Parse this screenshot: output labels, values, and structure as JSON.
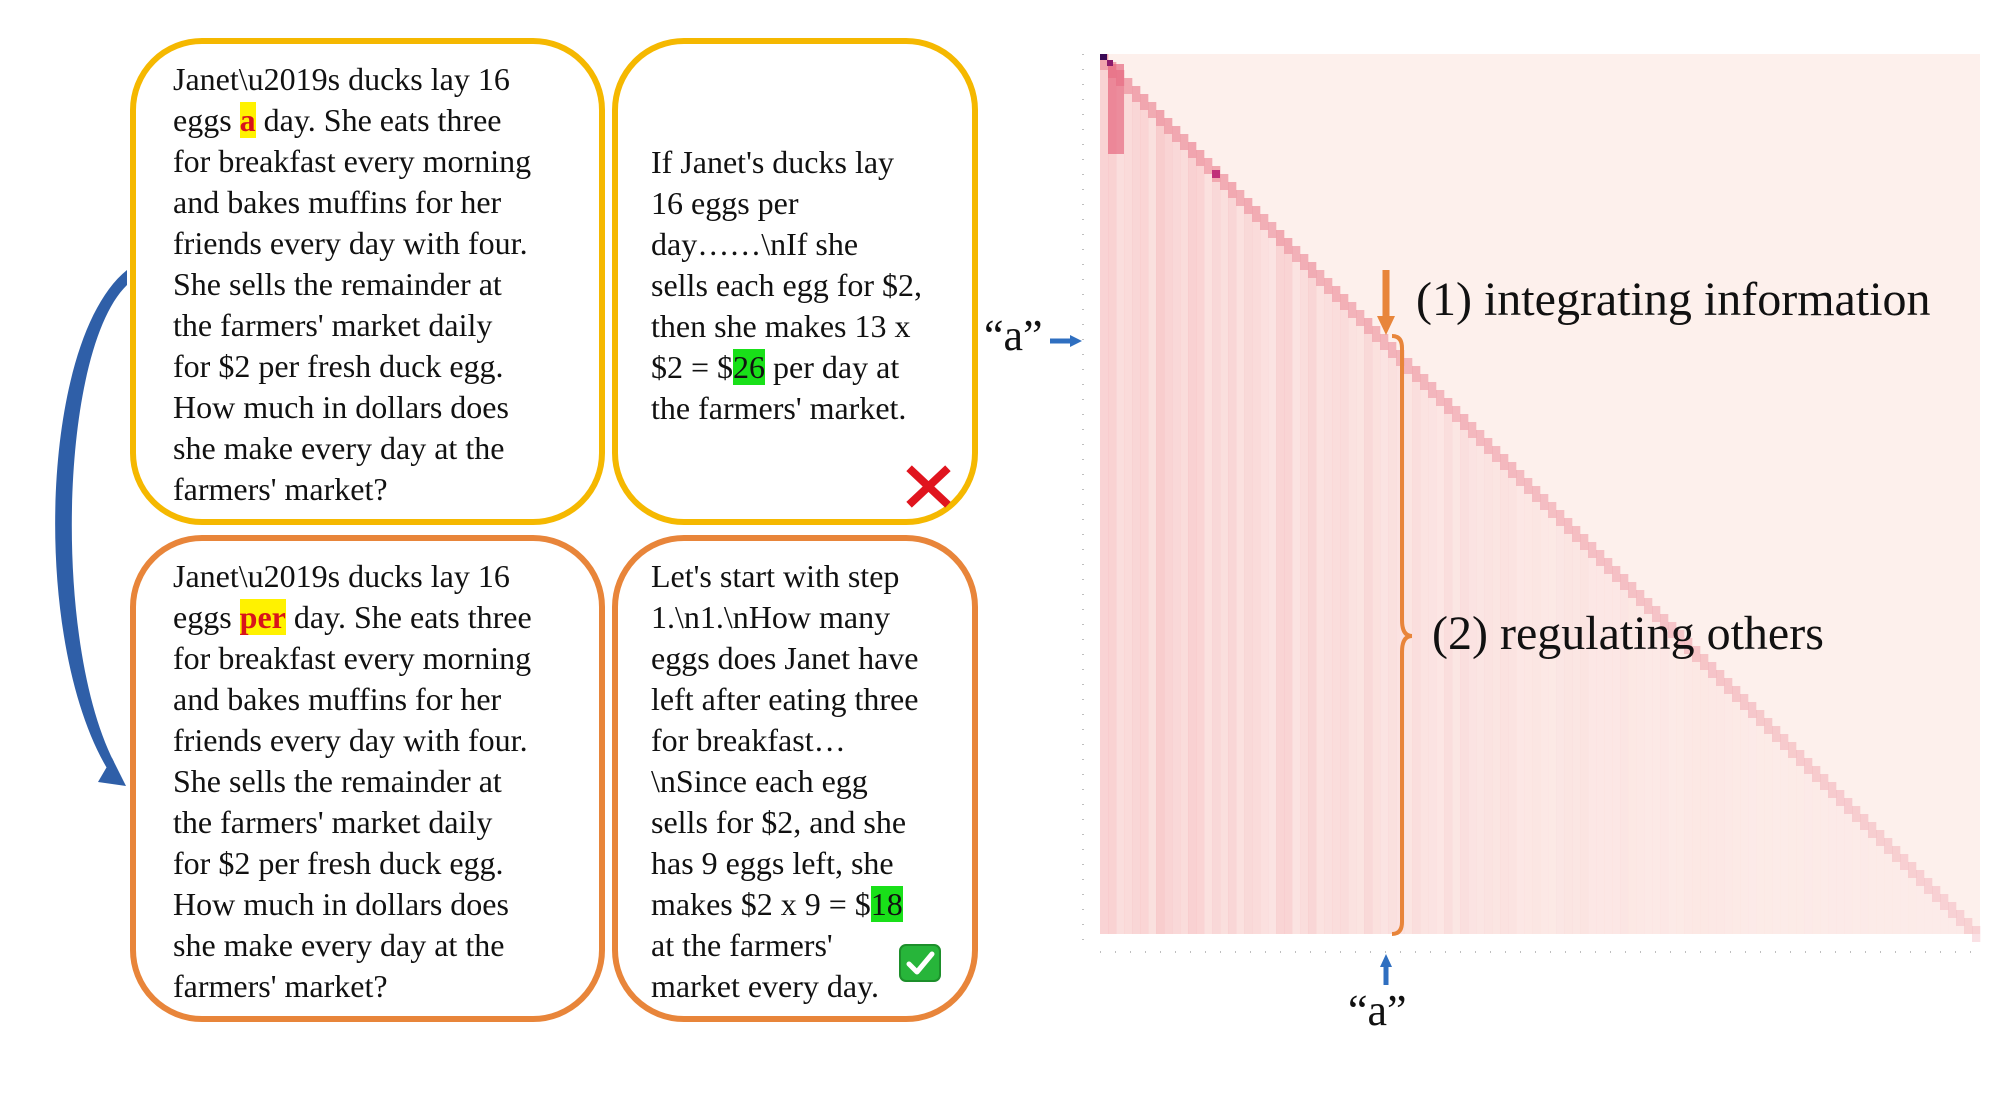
{
  "panels": {
    "q1": {
      "pre": "Janet\\u2019s ducks lay 16\neggs ",
      "hl": "a",
      "post": " day. She eats three\nfor breakfast every morning\nand bakes muffins for her\nfriends every day with four.\nShe sells the remainder at\nthe farmers' market daily\nfor $2 per fresh duck egg.\nHow much in dollars does\nshe make every day at the\nfarmers' market?"
    },
    "a1": {
      "pre": "If Janet's ducks lay\n16 eggs per\nday……\\nIf she\nsells each egg for $2,\nthen she makes 13 x\n$2 = $",
      "hl": "26",
      "post": " per day at\nthe farmers' market."
    },
    "q2": {
      "pre": "Janet\\u2019s ducks lay 16\neggs ",
      "hl": "per",
      "post": " day. She eats three\nfor breakfast every morning\nand bakes muffins for her\nfriends every day with four.\nShe sells the remainder at\nthe farmers' market daily\nfor $2 per fresh duck egg.\nHow much in dollars does\nshe make every day at the\nfarmers' market?"
    },
    "a2": {
      "pre": "Let's start with step\n1.\\n1.\\nHow many\neggs does Janet have\nleft after eating three\nfor breakfast…\n\\nSince each egg\nsells for $2, and she\nhas 9 eggs left, she\nmakes $2 x 9 = $",
      "hl": "18",
      "post": "\nat the farmers'\nmarket every day."
    }
  },
  "annotations": {
    "integrating": "(1)  integrating information",
    "regulating": "(2)  regulating others",
    "token_left": "“a”",
    "token_bottom": "“a”"
  },
  "colors": {
    "yellow_border": "#F5B800",
    "orange_border": "#E8853A",
    "highlight_token": "#FFF200",
    "highlight_answer": "#19E019",
    "wrong": "#E0141E",
    "correct": "#27B53A",
    "arrow_blue": "#2F5FA8",
    "bracket": "#E8853A"
  },
  "icons": {
    "wrong": "x-mark-icon",
    "correct": "check-mark-icon"
  }
}
